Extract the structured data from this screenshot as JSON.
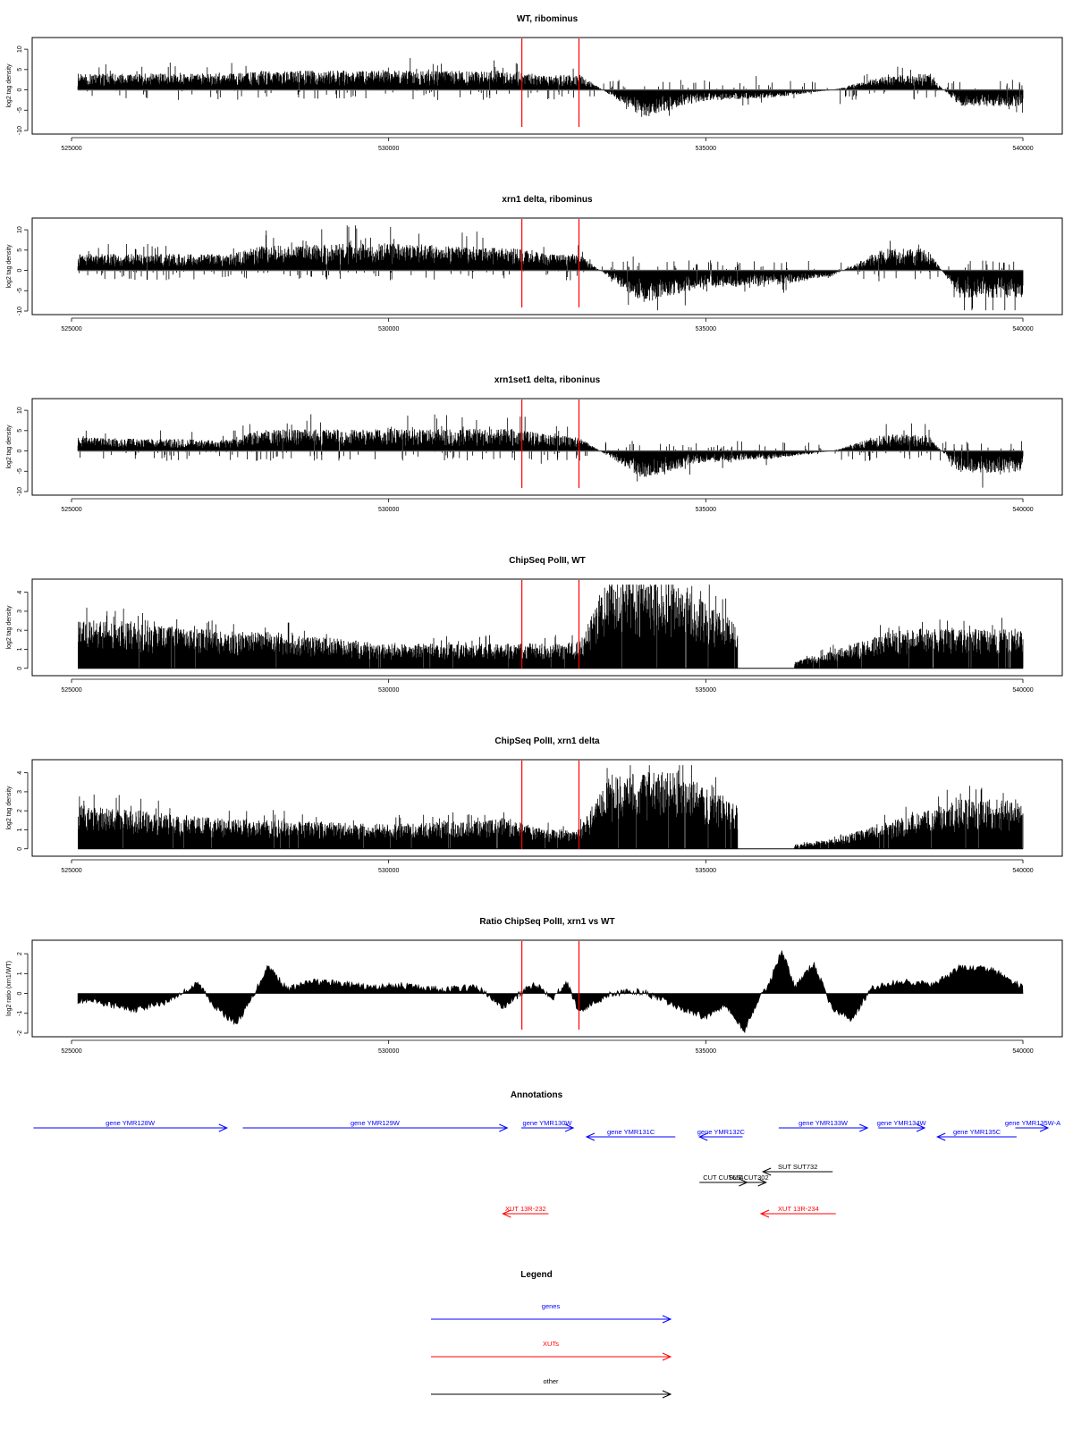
{
  "figure": {
    "annotations_title": "Annotations",
    "legend_title": "Legend",
    "legend_items": [
      {
        "label": "genes",
        "color": "#0000ff"
      },
      {
        "label": "XUTs",
        "color": "#ff0000"
      },
      {
        "label": "other",
        "color": "#000000"
      }
    ]
  },
  "chart_data": [
    {
      "type": "bar",
      "title": "WT, ribominus",
      "ylabel": "log2 tag density",
      "xlim": [
        525000,
        540000
      ],
      "ylim": [
        -10,
        12
      ],
      "x_ticks": [
        "525000",
        "530000",
        "535000",
        "540000"
      ],
      "y_ticks": [
        "10",
        "5",
        "0",
        "-5",
        "-10"
      ],
      "y_tick_values": [
        10,
        5,
        0,
        -5,
        -10
      ],
      "profile": {
        "x": [
          525000,
          527500,
          528000,
          530000,
          532000,
          532500,
          533000,
          534000,
          535000,
          536000,
          537000,
          537800,
          538500,
          539000,
          540000
        ],
        "y": [
          3,
          3,
          3.5,
          3.5,
          3.5,
          2.5,
          3,
          -5,
          -2,
          -1.5,
          0,
          2.5,
          3,
          -3,
          -3
        ]
      }
    },
    {
      "type": "bar",
      "title": "xrn1 delta, ribominus",
      "ylabel": "log2 tag density",
      "xlim": [
        525000,
        540000
      ],
      "ylim": [
        -10,
        12
      ],
      "x_ticks": [
        "525000",
        "530000",
        "535000",
        "540000"
      ],
      "y_ticks": [
        "10",
        "5",
        "0",
        "-5",
        "-10"
      ],
      "y_tick_values": [
        10,
        5,
        0,
        -5,
        -10
      ],
      "profile": {
        "x": [
          525000,
          527500,
          528000,
          530000,
          532000,
          532500,
          533000,
          534000,
          535000,
          536000,
          537000,
          537800,
          538500,
          539000,
          540000
        ],
        "y": [
          3,
          3,
          4.5,
          5,
          4,
          3,
          3,
          -6,
          -3,
          -3,
          -1,
          4,
          4,
          -5,
          -5
        ]
      }
    },
    {
      "type": "bar",
      "title": "xrn1set1 delta, riboninus",
      "ylabel": "log2 tag density",
      "xlim": [
        525000,
        540000
      ],
      "ylim": [
        -10,
        12
      ],
      "x_ticks": [
        "525000",
        "530000",
        "535000",
        "540000"
      ],
      "y_ticks": [
        "10",
        "5",
        "0",
        "-5",
        "-10"
      ],
      "y_tick_values": [
        10,
        5,
        0,
        -5,
        -10
      ],
      "profile": {
        "x": [
          525000,
          527500,
          528000,
          530000,
          532000,
          532500,
          533000,
          534000,
          535000,
          536000,
          537000,
          537800,
          538500,
          539000,
          540000
        ],
        "y": [
          2.5,
          2,
          4,
          4,
          4,
          3,
          2.5,
          -5,
          -2,
          -1.5,
          0,
          3,
          3,
          -4,
          -4
        ]
      }
    },
    {
      "type": "bar",
      "title": "ChipSeq PolII, WT",
      "ylabel": "log2 tag density",
      "xlim": [
        525000,
        540000
      ],
      "ylim": [
        -0.2,
        4.5
      ],
      "x_ticks": [
        "525000",
        "530000",
        "535000",
        "540000"
      ],
      "y_ticks": [
        "4",
        "3",
        "2",
        "1",
        "0"
      ],
      "y_tick_values": [
        4,
        3,
        2,
        1,
        0
      ],
      "profile": {
        "x": [
          525000,
          527500,
          528000,
          530000,
          531800,
          532500,
          533000,
          533500,
          534500,
          535500,
          536000,
          537000,
          538000,
          539000,
          540000
        ],
        "y": [
          2,
          1.5,
          1.5,
          1,
          1,
          1,
          1,
          3.8,
          3.5,
          1.8,
          0,
          0.7,
          1.6,
          1.6,
          1.6
        ]
      }
    },
    {
      "type": "bar",
      "title": "ChipSeq PolII, xrn1 delta",
      "ylabel": "log2 tag density",
      "xlim": [
        525000,
        540000
      ],
      "ylim": [
        -0.2,
        4.5
      ],
      "x_ticks": [
        "525000",
        "530000",
        "535000",
        "540000"
      ],
      "y_ticks": [
        "4",
        "3",
        "2",
        "1",
        "0"
      ],
      "y_tick_values": [
        4,
        3,
        2,
        1,
        0
      ],
      "profile": {
        "x": [
          525000,
          527500,
          528000,
          530000,
          531800,
          532500,
          533000,
          533500,
          534500,
          535500,
          536000,
          537000,
          538000,
          539000,
          540000
        ],
        "y": [
          1.8,
          1.2,
          1.2,
          1,
          1.2,
          0.8,
          0.8,
          3,
          3.2,
          1.8,
          0,
          0.4,
          1.2,
          2,
          2
        ]
      }
    },
    {
      "type": "area",
      "title": "Ratio ChipSeq PolII, xrn1 vs WT",
      "ylabel": "log2 ratio (xrn1/WT)",
      "xlim": [
        525000,
        540000
      ],
      "ylim": [
        -2,
        2.5
      ],
      "x_ticks": [
        "525000",
        "530000",
        "535000",
        "540000"
      ],
      "y_ticks": [
        "2",
        "1",
        "0",
        "-1",
        "-2"
      ],
      "y_tick_values": [
        2,
        1,
        0,
        -1,
        -2
      ],
      "x": [
        525000,
        525500,
        526000,
        526500,
        527000,
        527300,
        527600,
        527800,
        528100,
        528400,
        528800,
        529200,
        529700,
        530200,
        530800,
        531400,
        531800,
        532000,
        532300,
        532600,
        532800,
        533000,
        533500,
        534000,
        534500,
        535000,
        535300,
        535600,
        535800,
        536000,
        536200,
        536400,
        536700,
        537000,
        537300,
        537600,
        537900,
        538200,
        538600,
        539000,
        539500,
        540000
      ],
      "y": [
        -0.3,
        -0.5,
        -0.8,
        -0.4,
        0.5,
        -0.8,
        -1.5,
        -0.5,
        1.4,
        0.2,
        0.6,
        0.5,
        0.3,
        0.4,
        0.2,
        0.3,
        -0.7,
        -0.2,
        0.5,
        -0.2,
        0.6,
        -0.9,
        0,
        0.1,
        -0.6,
        -1.2,
        -0.5,
        -1.9,
        -0.5,
        0.5,
        2.2,
        0.3,
        1.5,
        -0.8,
        -1.3,
        0.2,
        0.5,
        0.6,
        0.4,
        1.3,
        1.2,
        0.3
      ]
    }
  ],
  "tracks": {
    "markers": [
      532100,
      533000
    ],
    "genes": [
      {
        "label": "gene YMR128W",
        "start": 524400,
        "end": 527450,
        "strand": "+"
      },
      {
        "label": "gene YMR129W",
        "start": 527700,
        "end": 531870,
        "strand": "+"
      },
      {
        "label": "gene YMR130W",
        "start": 532090,
        "end": 532910,
        "strand": "+"
      },
      {
        "label": "gene YMR131C",
        "start": 533120,
        "end": 534520,
        "strand": "-"
      },
      {
        "label": "gene YMR132C",
        "start": 534900,
        "end": 535580,
        "strand": "-"
      },
      {
        "label": "gene YMR133W",
        "start": 536150,
        "end": 537550,
        "strand": "+"
      },
      {
        "label": "gene YMR134W",
        "start": 537720,
        "end": 538450,
        "strand": "+"
      },
      {
        "label": "gene YMR135C",
        "start": 538650,
        "end": 539900,
        "strand": "-"
      },
      {
        "label": "gene YMR135W-A",
        "start": 539880,
        "end": 540450,
        "strand": "+"
      }
    ],
    "xuts": [
      {
        "label": "XUT 13R-232",
        "start": 531800,
        "end": 532520,
        "strand": "-"
      },
      {
        "label": "XUT 13R-234",
        "start": 535870,
        "end": 537050,
        "strand": "-"
      }
    ],
    "other": [
      {
        "label": "SUT SUT732",
        "start": 535900,
        "end": 537000,
        "strand": "-",
        "row": 0
      },
      {
        "label": "CUT CUT654",
        "start": 534900,
        "end": 535650,
        "strand": "+",
        "row": 1
      },
      {
        "label": "SUT CUT302",
        "start": 535400,
        "end": 535950,
        "strand": "+",
        "row": 1
      }
    ]
  }
}
